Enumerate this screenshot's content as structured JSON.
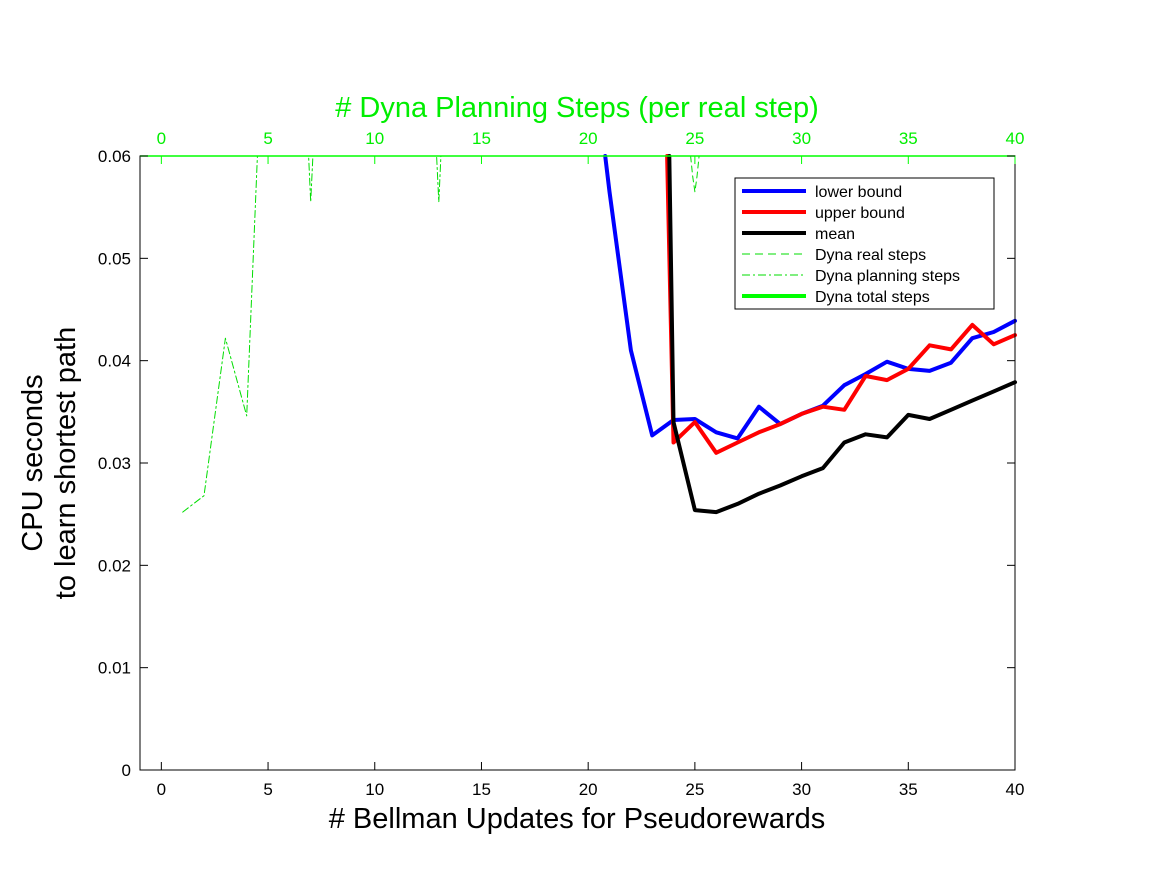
{
  "chart_data": {
    "type": "line",
    "xlabel": "# Bellman Updates for Pseudorewards",
    "x2label": "# Dyna Planning Steps (per real step)",
    "ylabel_lines": [
      "CPU seconds",
      "to learn shortest path"
    ],
    "xlim": [
      -1,
      40
    ],
    "ylim": [
      0,
      0.06
    ],
    "xticks": [
      "0",
      "5",
      "10",
      "15",
      "20",
      "25",
      "30",
      "35",
      "40"
    ],
    "x2ticks": [
      "0",
      "5",
      "10",
      "15",
      "20",
      "25",
      "30",
      "35",
      "40"
    ],
    "yticks": [
      "0",
      "0.01",
      "0.02",
      "0.03",
      "0.04",
      "0.05",
      "0.06"
    ],
    "grid": false,
    "legend_position": "top-right",
    "series": [
      {
        "name": "lower bound",
        "color": "#0000ff",
        "style": "solid",
        "width": 4,
        "axis": "bottom",
        "x": [
          20.8,
          21,
          22,
          23,
          24,
          25,
          26,
          27,
          28,
          29,
          30,
          31,
          32,
          33,
          34,
          35,
          36,
          37,
          38,
          39,
          40
        ],
        "y": [
          0.06,
          0.0565,
          0.041,
          0.0327,
          0.0342,
          0.0343,
          0.033,
          0.0324,
          0.0355,
          0.0338,
          0.0348,
          0.0356,
          0.0376,
          0.0387,
          0.0399,
          0.0392,
          0.039,
          0.0398,
          0.0422,
          0.0428,
          0.0439
        ]
      },
      {
        "name": "upper bound",
        "color": "#ff0000",
        "style": "solid",
        "width": 4,
        "axis": "bottom",
        "x": [
          23.7,
          24,
          25,
          26,
          27,
          28,
          29,
          30,
          31,
          32,
          33,
          34,
          35,
          36,
          37,
          38,
          39,
          40
        ],
        "y": [
          0.06,
          0.032,
          0.034,
          0.031,
          0.032,
          0.033,
          0.0338,
          0.0348,
          0.0355,
          0.0352,
          0.0385,
          0.0381,
          0.0392,
          0.0415,
          0.0411,
          0.0435,
          0.0416,
          0.0425
        ]
      },
      {
        "name": "mean",
        "color": "#000000",
        "style": "solid",
        "width": 4,
        "axis": "bottom",
        "x": [
          23.8,
          24,
          25,
          26,
          27,
          28,
          29,
          30,
          31,
          32,
          33,
          34,
          35,
          36,
          37,
          38,
          39,
          40
        ],
        "y": [
          0.06,
          0.034,
          0.0254,
          0.0252,
          0.026,
          0.027,
          0.0278,
          0.0287,
          0.0295,
          0.032,
          0.0328,
          0.0325,
          0.0347,
          0.0343,
          0.0352,
          0.0361,
          0.037,
          0.0379
        ]
      },
      {
        "name": "Dyna real steps",
        "color": "#00dd00",
        "style": "dashed",
        "width": 1,
        "axis": "top",
        "x": [
          24.8,
          24.9,
          25,
          25.1,
          25.2
        ],
        "y": [
          0.06,
          0.058,
          0.0565,
          0.058,
          0.06
        ]
      },
      {
        "name": "Dyna planning steps",
        "color": "#00dd00",
        "style": "dashdot",
        "width": 1,
        "axis": "top",
        "x": [
          1,
          2,
          3,
          4,
          4.5,
          6.9,
          7,
          7.1,
          12.9,
          13,
          13.1
        ],
        "y": [
          0.0252,
          0.0268,
          0.0422,
          0.0346,
          0.06,
          0.06,
          0.0555,
          0.06,
          0.06,
          0.0555,
          0.06
        ]
      },
      {
        "name": "Dyna total steps",
        "color": "#00ff00",
        "style": "solid",
        "width": 4,
        "axis": "top",
        "x": [],
        "y": []
      }
    ]
  }
}
